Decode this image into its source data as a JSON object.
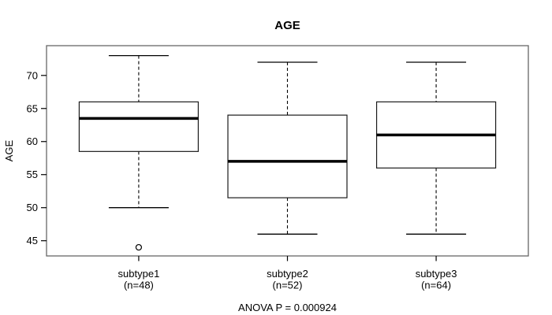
{
  "window": {
    "background": "#ffffff"
  },
  "colors": {
    "foreground": "#000000",
    "frame": "#666666",
    "box_stroke": "#1c1c1c",
    "background": "#ffffff"
  },
  "chart_data": {
    "type": "boxplot",
    "title": "AGE",
    "ylabel": "AGE",
    "xlabel": "",
    "annotation": "ANOVA P = 0.000924",
    "ylim": [
      42.7,
      74.5
    ],
    "yticks": [
      45,
      50,
      55,
      60,
      65,
      70
    ],
    "grid": "off",
    "legend": "none",
    "categories": [
      "subtype1",
      "subtype2",
      "subtype3"
    ],
    "category_sublabels": [
      "(n=48)",
      "(n=52)",
      "(n=64)"
    ],
    "series": [
      {
        "name": "subtype1",
        "n": 48,
        "whisker_low": 50,
        "q1": 58.5,
        "median": 63.5,
        "q3": 66,
        "whisker_high": 73,
        "outliers": [
          44
        ]
      },
      {
        "name": "subtype2",
        "n": 52,
        "whisker_low": 46,
        "q1": 51.5,
        "median": 57,
        "q3": 64,
        "whisker_high": 72,
        "outliers": []
      },
      {
        "name": "subtype3",
        "n": 64,
        "whisker_low": 46,
        "q1": 56,
        "median": 61,
        "q3": 66,
        "whisker_high": 72,
        "outliers": []
      }
    ]
  }
}
